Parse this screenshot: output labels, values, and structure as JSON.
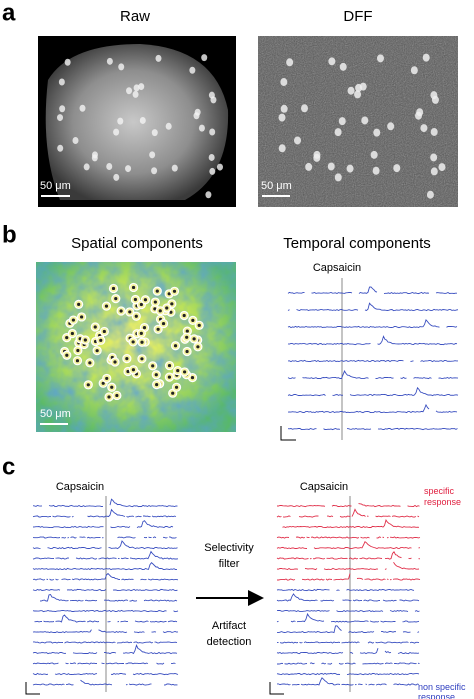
{
  "panel_a": {
    "label": "a",
    "raw_title": "Raw",
    "raw_scale": "50 μm",
    "dff_title": "DFF",
    "dff_scale": "50 μm"
  },
  "panel_b": {
    "label": "b",
    "spatial_title": "Spatial components",
    "spatial_scale": "50 μm",
    "temporal_title": "Temporal components",
    "stimulus": "Capsaicin"
  },
  "panel_c": {
    "label": "c",
    "stimulus_left": "Capsaicin",
    "stimulus_right": "Capsaicin",
    "step_1": "Selectivity filter",
    "step_2": "Artifact detection",
    "specific": "specific response",
    "non_specific": "non specific response"
  }
}
